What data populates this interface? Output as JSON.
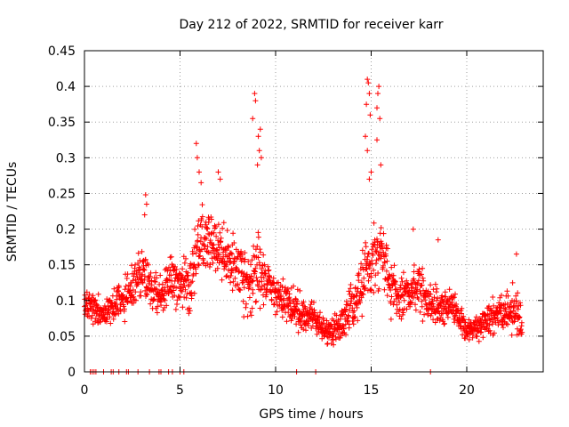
{
  "chart_data": {
    "type": "scatter",
    "title": "Day 212 of 2022, SRMTID for receiver karr",
    "xlabel": "GPS time / hours",
    "ylabel": "SRMTID / TECUs",
    "xlim": [
      0,
      24
    ],
    "ylim": [
      0,
      0.45
    ],
    "grid": true,
    "marker": "+",
    "color": "#ff0000",
    "xticks": [
      0,
      5,
      10,
      15,
      20
    ],
    "xtick_labels": [
      "0",
      "5",
      "10",
      "15",
      "20"
    ],
    "yticks": [
      0,
      0.05,
      0.1,
      0.15,
      0.2,
      0.25,
      0.3,
      0.35,
      0.4,
      0.45
    ],
    "ytick_labels": [
      "0",
      "0.05",
      "0.1",
      "0.15",
      "0.2",
      "0.25",
      "0.3",
      "0.35",
      "0.4",
      "0.45"
    ],
    "trend": {
      "x": [
        0,
        0.5,
        1,
        1.5,
        2,
        2.5,
        3,
        3.5,
        4,
        4.5,
        5,
        5.5,
        6,
        6.5,
        7,
        7.5,
        8,
        8.5,
        9,
        9.5,
        10,
        10.5,
        11,
        11.5,
        12,
        12.5,
        13,
        13.5,
        14,
        14.5,
        15,
        15.5,
        16,
        16.5,
        17,
        17.5,
        18,
        18.5,
        19,
        19.5,
        20,
        20.5,
        21,
        21.5,
        22,
        22.5,
        22.9
      ],
      "center": [
        0.1,
        0.09,
        0.08,
        0.09,
        0.1,
        0.12,
        0.14,
        0.12,
        0.11,
        0.13,
        0.12,
        0.13,
        0.18,
        0.19,
        0.17,
        0.16,
        0.15,
        0.12,
        0.14,
        0.13,
        0.11,
        0.1,
        0.09,
        0.08,
        0.08,
        0.06,
        0.055,
        0.07,
        0.09,
        0.12,
        0.16,
        0.17,
        0.12,
        0.1,
        0.11,
        0.12,
        0.1,
        0.09,
        0.09,
        0.08,
        0.06,
        0.06,
        0.07,
        0.08,
        0.08,
        0.09,
        0.07
      ],
      "spread": [
        0.03,
        0.03,
        0.03,
        0.035,
        0.04,
        0.05,
        0.05,
        0.04,
        0.04,
        0.05,
        0.04,
        0.06,
        0.07,
        0.06,
        0.06,
        0.06,
        0.06,
        0.08,
        0.08,
        0.05,
        0.04,
        0.04,
        0.04,
        0.035,
        0.03,
        0.025,
        0.025,
        0.03,
        0.05,
        0.07,
        0.08,
        0.07,
        0.05,
        0.04,
        0.05,
        0.05,
        0.04,
        0.04,
        0.04,
        0.03,
        0.025,
        0.025,
        0.03,
        0.04,
        0.04,
        0.05,
        0.04
      ]
    },
    "spikes": [
      {
        "x": 3.2,
        "y": 0.248
      },
      {
        "x": 3.25,
        "y": 0.235
      },
      {
        "x": 3.15,
        "y": 0.22
      },
      {
        "x": 5.85,
        "y": 0.32
      },
      {
        "x": 5.9,
        "y": 0.3
      },
      {
        "x": 6.0,
        "y": 0.28
      },
      {
        "x": 6.1,
        "y": 0.265
      },
      {
        "x": 7.0,
        "y": 0.28
      },
      {
        "x": 7.1,
        "y": 0.27
      },
      {
        "x": 8.9,
        "y": 0.39
      },
      {
        "x": 8.95,
        "y": 0.38
      },
      {
        "x": 8.8,
        "y": 0.355
      },
      {
        "x": 9.2,
        "y": 0.34
      },
      {
        "x": 9.1,
        "y": 0.33
      },
      {
        "x": 9.15,
        "y": 0.31
      },
      {
        "x": 9.25,
        "y": 0.3
      },
      {
        "x": 9.05,
        "y": 0.29
      },
      {
        "x": 14.8,
        "y": 0.41
      },
      {
        "x": 14.85,
        "y": 0.405
      },
      {
        "x": 14.9,
        "y": 0.39
      },
      {
        "x": 14.75,
        "y": 0.375
      },
      {
        "x": 14.95,
        "y": 0.36
      },
      {
        "x": 15.4,
        "y": 0.4
      },
      {
        "x": 15.35,
        "y": 0.39
      },
      {
        "x": 15.3,
        "y": 0.37
      },
      {
        "x": 15.45,
        "y": 0.355
      },
      {
        "x": 14.7,
        "y": 0.33
      },
      {
        "x": 14.8,
        "y": 0.31
      },
      {
        "x": 15.3,
        "y": 0.325
      },
      {
        "x": 15.5,
        "y": 0.29
      },
      {
        "x": 15.0,
        "y": 0.28
      },
      {
        "x": 14.9,
        "y": 0.27
      },
      {
        "x": 17.2,
        "y": 0.2
      },
      {
        "x": 18.5,
        "y": 0.185
      },
      {
        "x": 22.6,
        "y": 0.165
      }
    ],
    "zero_markers_x": [
      0.3,
      0.4,
      0.5,
      0.6,
      1.0,
      1.4,
      1.5,
      1.8,
      2.2,
      2.3,
      2.8,
      3.4,
      3.9,
      4.0,
      4.4,
      4.6,
      5.0,
      5.2,
      11.1,
      12.1,
      18.1
    ]
  }
}
